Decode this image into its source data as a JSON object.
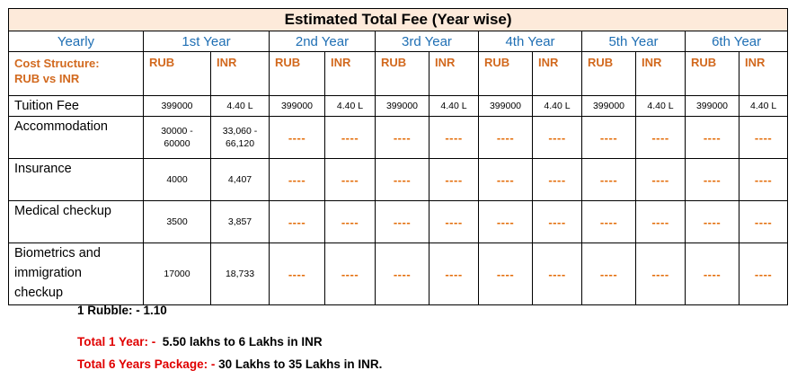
{
  "title": "Estimated Total Fee (Year wise)",
  "header": {
    "yearly": "Yearly",
    "years": [
      "1st Year",
      "2nd Year",
      "3rd Year",
      "4th Year",
      "5th Year",
      "6th Year"
    ],
    "cost_structure": [
      "Cost Structure:",
      "RUB vs INR"
    ],
    "rub": "RUB",
    "inr": "INR"
  },
  "rows": [
    {
      "label": "Tuition Fee",
      "rub": "399000",
      "inr": "4.40 L",
      "others": [
        "399000",
        "4.40 L",
        "399000",
        "4.40 L",
        "399000",
        "4.40 L",
        "399000",
        "4.40 L",
        "399000",
        "4.40 L"
      ]
    },
    {
      "label": "Accommodation",
      "rub_lines": [
        "30000 -",
        "60000"
      ],
      "inr_lines": [
        "33,060 -",
        "66,120"
      ],
      "placeholder": "----"
    },
    {
      "label": "Insurance",
      "rub": "4000",
      "inr": "4,407",
      "placeholder": "----"
    },
    {
      "label": "Medical checkup",
      "rub": "3500",
      "inr": "3,857",
      "placeholder": "----"
    },
    {
      "label_lines": [
        "Biometrics and",
        "immigration",
        "checkup"
      ],
      "rub": "17000",
      "inr": "18,733",
      "placeholder": "----"
    }
  ],
  "notes": {
    "rubble": "1 Rubble: - 1.10",
    "total1_label": "Total 1 Year: -",
    "total1_value": "  5.50 lakhs to 6 Lakhs in INR",
    "total6_label": "Total 6 Years Package: -",
    "total6_value": " 30 Lakhs to 35 Lakhs in INR."
  }
}
